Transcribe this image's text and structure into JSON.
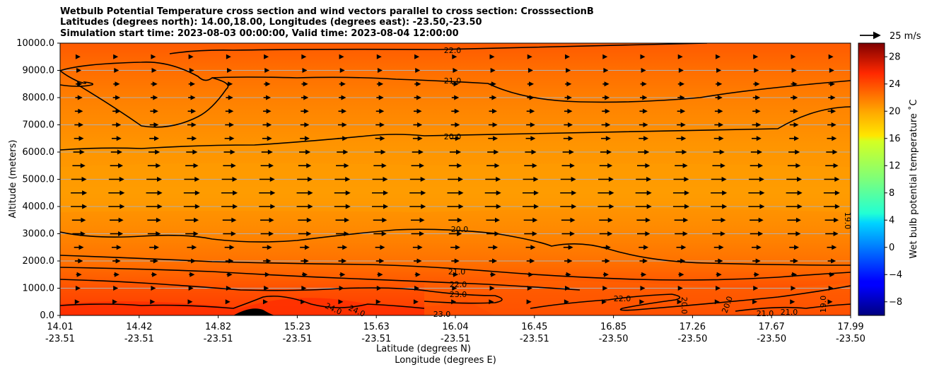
{
  "chart_data": {
    "type": "heatmap",
    "title_lines": [
      "Wetbulb Potential Temperature cross section and wind vectors parallel to cross section: CrosssectionB",
      "Latitudes (degrees north): 14.00,18.00, Longitudes (degrees east): -23.50,-23.50",
      "Simulation start time: 2023-08-03 00:00:00, Valid time: 2023-08-04 12:00:00"
    ],
    "xlabel": "Latitude (degrees N)",
    "xlabel2": "Longitude (degrees E)",
    "ylabel": "Altitude (meters)",
    "ylim": [
      0,
      10000
    ],
    "xlim": [
      14.01,
      17.99
    ],
    "yticks": [
      "0.0",
      "1000.0",
      "2000.0",
      "3000.0",
      "4000.0",
      "5000.0",
      "6000.0",
      "7000.0",
      "8000.0",
      "9000.0",
      "10000.0"
    ],
    "xticks": [
      {
        "lat": "14.01",
        "lon": "-23.51"
      },
      {
        "lat": "14.42",
        "lon": "-23.51"
      },
      {
        "lat": "14.82",
        "lon": "-23.51"
      },
      {
        "lat": "15.23",
        "lon": "-23.51"
      },
      {
        "lat": "15.63",
        "lon": "-23.51"
      },
      {
        "lat": "16.04",
        "lon": "-23.51"
      },
      {
        "lat": "16.45",
        "lon": "-23.51"
      },
      {
        "lat": "16.85",
        "lon": "-23.50"
      },
      {
        "lat": "17.26",
        "lon": "-23.50"
      },
      {
        "lat": "17.67",
        "lon": "-23.50"
      },
      {
        "lat": "17.99",
        "lon": "-23.50"
      }
    ],
    "grid": "horizontal",
    "colorbar": {
      "label": "Wet bulb potential temperature $^\\circ$C",
      "label_display": "Wet bulb potential temperature ˚C",
      "vmin": -10,
      "vmax": 30,
      "ticks": [
        "−8",
        "−4",
        "0",
        "4",
        "8",
        "12",
        "16",
        "20",
        "24",
        "28"
      ],
      "colormap": "jet"
    },
    "wind_key": "25 m/s",
    "contours": [
      {
        "level": 22.0,
        "label": "22.0",
        "alt": 9750
      },
      {
        "level": 21.0,
        "label": "21.0",
        "alt": 8650
      },
      {
        "level": 20.0,
        "label": "20.0",
        "alt": 6550
      },
      {
        "level": 20.0,
        "label": "20.0",
        "alt": 3200
      },
      {
        "level": 21.0,
        "label": "21.0",
        "alt": 1600
      },
      {
        "level": 22.0,
        "label": "22.0",
        "alt": 1200
      },
      {
        "level": 23.0,
        "label": "23.0",
        "alt": 800
      },
      {
        "level": 24.0,
        "label": "24.0",
        "alt": 250
      },
      {
        "level": 23.0,
        "label": "23.0",
        "alt": 50
      },
      {
        "level": 22.0,
        "label": "22.0",
        "alt": 650
      }
    ],
    "contour_labels_visible": [
      "22.0",
      "21.0",
      "20.0",
      "20.0",
      "21.0",
      "22.0",
      "23.0",
      "24.0",
      "24.0",
      "23.0",
      "22.0",
      "20.0",
      "20.0",
      "21.0",
      "21.0",
      "19.0",
      "19.0"
    ],
    "wind": {
      "altitudes": [
        9500,
        9000,
        8500,
        8000,
        7500,
        7000,
        6500,
        6000,
        5500,
        5000,
        4500,
        4000,
        3500,
        3000,
        2500,
        2000,
        1500,
        1000,
        500
      ],
      "speed_ms": [
        4,
        6,
        8,
        9,
        10,
        11,
        12,
        14,
        16,
        19,
        20,
        20,
        17,
        16,
        12,
        10,
        7,
        4,
        2
      ],
      "direction": "parallel to cross section (towards increasing latitude)"
    }
  }
}
